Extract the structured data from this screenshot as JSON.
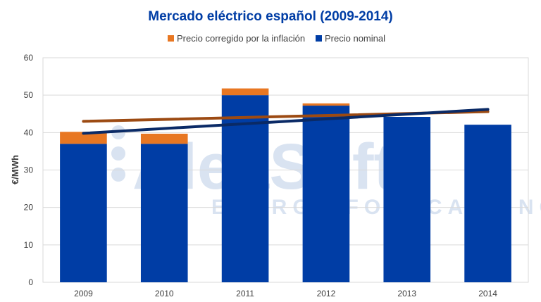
{
  "chart_data": {
    "type": "bar",
    "title": "Mercado eléctrico español (2009-2014)",
    "xlabel": "",
    "ylabel": "€/MWh",
    "categories": [
      "2009",
      "2010",
      "2011",
      "2012",
      "2013",
      "2014"
    ],
    "ylim": [
      0,
      60
    ],
    "yticks": [
      0,
      10,
      20,
      30,
      40,
      50,
      60
    ],
    "stacked": true,
    "grid": true,
    "legend_position": "top",
    "series": [
      {
        "name": "Precio nominal",
        "color": "#003da5",
        "values": [
          37.0,
          37.0,
          50.0,
          47.2,
          44.2,
          42.1
        ]
      },
      {
        "name": "Precio corregido por la inflación",
        "color": "#e87722",
        "values": [
          3.2,
          2.7,
          1.8,
          0.6,
          0.0,
          0.0
        ]
      }
    ],
    "trendlines": [
      {
        "series": "Precio corregido por la inflación",
        "color": "#9c4a12",
        "y_start": 43.0,
        "y_end": 45.6
      },
      {
        "series": "Precio nominal",
        "color": "#0a2a66",
        "y_start": 39.8,
        "y_end": 46.2
      }
    ],
    "legend_order": [
      "Precio corregido por la inflación",
      "Precio nominal"
    ]
  },
  "watermark": {
    "brand": "AleaSoft",
    "tagline": "ENERGY FORECASTING",
    "color": "#d9e3f1"
  },
  "colors": {
    "title": "#003da5",
    "grid": "#d9d9d9"
  }
}
